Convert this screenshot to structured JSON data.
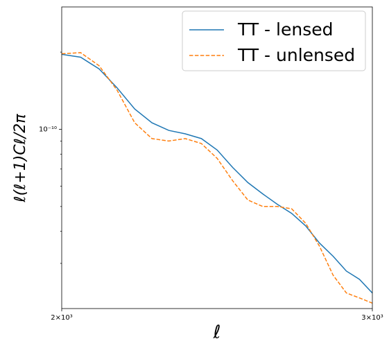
{
  "chart_data": {
    "type": "line",
    "xlabel": "ℓ",
    "ylabel": "ℓ(ℓ+1)Cℓ/2π",
    "x": [
      2000,
      2050,
      2100,
      2150,
      2200,
      2250,
      2300,
      2350,
      2400,
      2450,
      2500,
      2550,
      2600,
      2650,
      2700,
      2750,
      2800,
      2850,
      2900,
      2950,
      3000
    ],
    "series": [
      {
        "name": "TT - lensed",
        "color": "#1f77b4",
        "linestyle": "solid",
        "values": [
          1.96e-10,
          1.91e-10,
          1.72e-10,
          1.45e-10,
          1.2e-10,
          1.06e-10,
          9.9e-11,
          9.6e-11,
          9.2e-11,
          8.3e-11,
          7.1e-11,
          6.2e-11,
          5.6e-11,
          5.1e-11,
          4.7e-11,
          4.2e-11,
          3.6e-11,
          3.2e-11,
          2.8e-11,
          2.6e-11,
          2.3e-11
        ]
      },
      {
        "name": "TT - unlensed",
        "color": "#ff7f0e",
        "linestyle": "dashed",
        "values": [
          1.97e-10,
          1.99e-10,
          1.77e-10,
          1.42e-10,
          1.06e-10,
          9.2e-11,
          9e-11,
          9.2e-11,
          8.8e-11,
          7.7e-11,
          6.3e-11,
          5.3e-11,
          5e-11,
          5e-11,
          4.9e-11,
          4.3e-11,
          3.5e-11,
          2.7e-11,
          2.3e-11,
          2.2e-11,
          2.1e-11
        ]
      }
    ],
    "xscale": "log",
    "yscale": "log",
    "xlim": [
      2000,
      3000
    ],
    "ylim": [
      2e-11,
      3e-10
    ],
    "xticks": [
      {
        "value": 2000,
        "label": "2×10³"
      },
      {
        "value": 3000,
        "label": "3×10³"
      }
    ],
    "yticks": [
      {
        "value": 1e-10,
        "label": "10⁻¹⁰"
      }
    ],
    "yminorticks": [
      3e-11,
      4e-11,
      5e-11,
      6e-11,
      7e-11,
      8e-11,
      9e-11,
      2e-10
    ],
    "legend": "upper right"
  }
}
